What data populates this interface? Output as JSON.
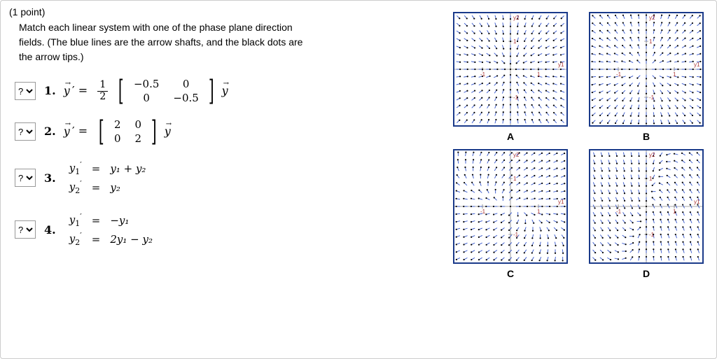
{
  "header": {
    "points": "(1 point)",
    "intro1": "Match each linear system with one of the phase plane direction",
    "intro2": "fields. (The blue lines are the arrow shafts, and the black dots are",
    "intro3": "the arrow tips.)"
  },
  "dropdown_placeholder": "?",
  "questions": {
    "q1": {
      "num": "1.",
      "m11": "−0.5",
      "m12": "0",
      "m21": "0",
      "m22": "−0.5",
      "frac_num": "1",
      "frac_den": "2"
    },
    "q2": {
      "num": "2.",
      "m11": "2",
      "m12": "0",
      "m21": "0",
      "m22": "2"
    },
    "q3": {
      "num": "3.",
      "r1": "y₁ + y₂",
      "r2": "y₂"
    },
    "q4": {
      "num": "4.",
      "r1": "−y₁",
      "r2": "2y₁ − y₂"
    }
  },
  "plots": {
    "labels": [
      "A",
      "B",
      "C",
      "D"
    ],
    "border_color": "#1a3a8a",
    "shaft_color": "#3355cc",
    "tip_color": "#000000",
    "y2_label": "y2",
    "y1_label": "y1",
    "tick_neg": "-1",
    "tick_pos": "1",
    "types": [
      "sink",
      "source",
      "shear",
      "saddle"
    ]
  }
}
